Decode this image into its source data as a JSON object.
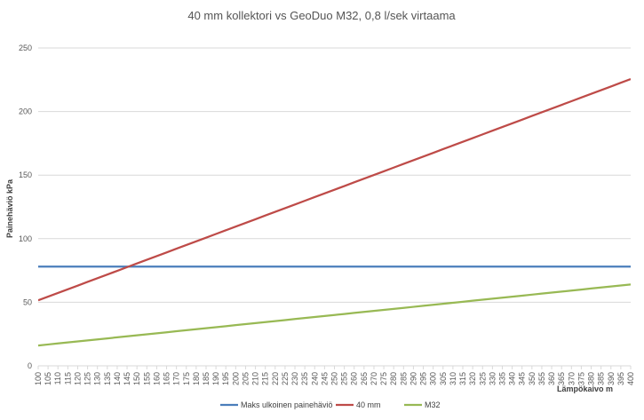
{
  "chart_data": {
    "type": "line",
    "title": "40 mm kollektori vs GeoDuo M32, 0,8 l/sek virtaama",
    "xlabel": "Lämpökaivo m",
    "ylabel": "Painehäviö kPa",
    "ylim": [
      0,
      250
    ],
    "yticks": [
      0,
      50,
      100,
      150,
      200,
      250
    ],
    "grid": true,
    "legend_position": "bottom",
    "x": [
      100,
      105,
      110,
      115,
      120,
      125,
      130,
      135,
      140,
      145,
      150,
      155,
      160,
      165,
      170,
      175,
      180,
      185,
      190,
      195,
      200,
      205,
      210,
      215,
      220,
      225,
      230,
      235,
      240,
      245,
      250,
      255,
      260,
      265,
      270,
      275,
      280,
      285,
      290,
      295,
      300,
      305,
      310,
      315,
      320,
      325,
      330,
      335,
      340,
      345,
      350,
      355,
      360,
      365,
      370,
      375,
      380,
      385,
      390,
      395,
      400
    ],
    "series": [
      {
        "name": "Maks ulkoinen painehäviö",
        "color": "#4a7ebb",
        "values": [
          78,
          78,
          78,
          78,
          78,
          78,
          78,
          78,
          78,
          78,
          78,
          78,
          78,
          78,
          78,
          78,
          78,
          78,
          78,
          78,
          78,
          78,
          78,
          78,
          78,
          78,
          78,
          78,
          78,
          78,
          78,
          78,
          78,
          78,
          78,
          78,
          78,
          78,
          78,
          78,
          78,
          78,
          78,
          78,
          78,
          78,
          78,
          78,
          78,
          78,
          78,
          78,
          78,
          78,
          78,
          78,
          78,
          78,
          78,
          78,
          78
        ]
      },
      {
        "name": "40 mm",
        "color": "#be4b48",
        "values": [
          51.5,
          54.4,
          57.3,
          60.2,
          63.1,
          66,
          68.9,
          71.8,
          74.7,
          77.6,
          80.5,
          83.4,
          86.3,
          89.2,
          92.1,
          95,
          97.9,
          100.8,
          103.7,
          106.6,
          109.5,
          112.4,
          115.3,
          118.2,
          121.1,
          124,
          126.9,
          129.8,
          132.7,
          135.6,
          138.5,
          141.4,
          144.3,
          147.2,
          150.1,
          153,
          155.9,
          158.8,
          161.7,
          164.6,
          167.5,
          170.4,
          173.3,
          176.2,
          179.1,
          182,
          184.9,
          187.8,
          190.7,
          193.6,
          196.5,
          199.4,
          202.3,
          205.2,
          208.1,
          211,
          213.9,
          216.8,
          219.7,
          222.6,
          225.5
        ]
      },
      {
        "name": "M32",
        "color": "#98b954",
        "values": [
          16,
          16.8,
          17.6,
          18.4,
          19.2,
          20,
          20.8,
          21.6,
          22.4,
          23.2,
          24,
          24.8,
          25.6,
          26.4,
          27.2,
          28,
          28.8,
          29.6,
          30.4,
          31.2,
          32,
          32.8,
          33.6,
          34.4,
          35.2,
          36,
          36.8,
          37.6,
          38.4,
          39.2,
          40,
          40.8,
          41.6,
          42.4,
          43.2,
          44,
          44.8,
          45.6,
          46.4,
          47.2,
          48,
          48.8,
          49.6,
          50.4,
          51.2,
          52,
          52.8,
          53.6,
          54.4,
          55.2,
          56,
          56.8,
          57.6,
          58.4,
          59.2,
          60,
          60.8,
          61.6,
          62.4,
          63.2,
          64
        ]
      }
    ]
  }
}
